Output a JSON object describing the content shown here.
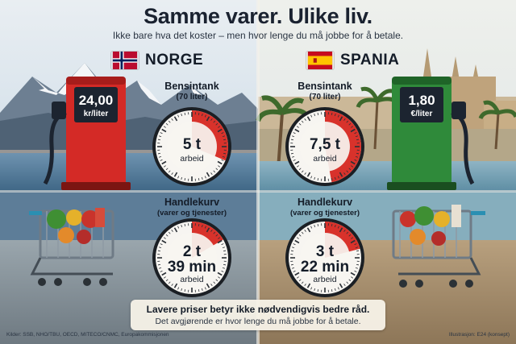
{
  "header": {
    "title": "Samme varer. Ulike liv.",
    "subtitle": "Ikke bare hva det koster – men hvor lenge du må jobbe for å betale."
  },
  "countries": [
    {
      "name": "NORGE",
      "flag_icon": "norway-flag-icon",
      "pump_color": "#d42a26",
      "fuel_price": "24,00",
      "fuel_unit": "kr/liter",
      "fuel": {
        "label": "Bensintank",
        "sub": "(70 liter)",
        "time": "5 t",
        "unit": "arbeid",
        "fraction": 0.3125
      },
      "basket": {
        "label": "Handlekurv",
        "sub": "(varer og tjenester)",
        "time_line1": "2 t",
        "time_line2": "39 min",
        "unit": "arbeid",
        "fraction": 0.166
      }
    },
    {
      "name": "SPANIA",
      "flag_icon": "spain-flag-icon",
      "pump_color": "#2f8a3a",
      "fuel_price": "1,80",
      "fuel_unit": "€/liter",
      "fuel": {
        "label": "Bensintank",
        "sub": "(70 liter)",
        "time": "7,5 t",
        "unit": "arbeid",
        "fraction": 0.47
      },
      "basket": {
        "label": "Handlekurv",
        "sub": "(varer og tjenester)",
        "time_line1": "3 t",
        "time_line2": "22 min",
        "unit": "arbeid",
        "fraction": 0.21
      }
    }
  ],
  "footer": {
    "line1": "Lavere priser betyr ikke nødvendigvis bedre råd.",
    "line2": "Det avgjørende er hvor lenge du må jobbe for å betale.",
    "source": "Kilder: SSB, NHO/TBU, OECD, MITECO/CNMC, Europakommisjonen",
    "credit": "Illustrasjon: E24 (konsept)"
  }
}
